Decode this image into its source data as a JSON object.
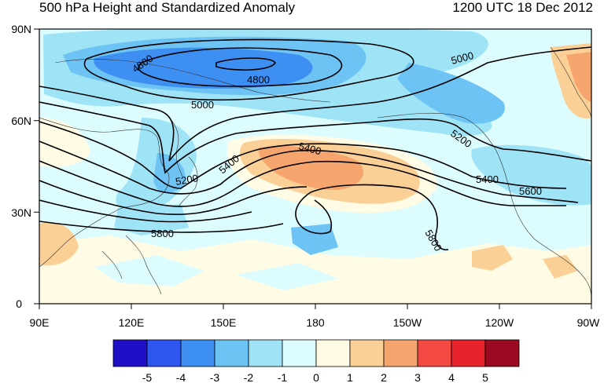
{
  "title": "500 hPa Height and Standardized Anomaly",
  "valid_time": "1200 UTC 18 Dec 2012",
  "axes": {
    "lat_labels": [
      "90N",
      "60N",
      "30N",
      "0"
    ],
    "lon_labels": [
      "90E",
      "120E",
      "150E",
      "180",
      "150W",
      "120W",
      "90W"
    ]
  },
  "colorbar": {
    "labels": [
      "-5",
      "-4",
      "-3",
      "-2",
      "-1",
      "0",
      "1",
      "2",
      "3",
      "4",
      "5"
    ],
    "colors": [
      "#1f10c8",
      "#2f56f0",
      "#3e8ff2",
      "#6cc3f4",
      "#9fe3f7",
      "#ddfcfe",
      "#fffbe4",
      "#fbd096",
      "#f6a56e",
      "#f24a43",
      "#e8232c",
      "#9a0a22"
    ]
  },
  "contour_labels": {
    "c4800a": "4800",
    "c4800b": "4800",
    "c5000a": "5000",
    "c5000b": "5000",
    "c5200a": "5200",
    "c5200b": "5200",
    "c5400a": "5400",
    "c5400b": "5400",
    "c5400c": "5400",
    "c5600": "5600",
    "c5800a": "5800",
    "c5800b": "5800"
  }
}
